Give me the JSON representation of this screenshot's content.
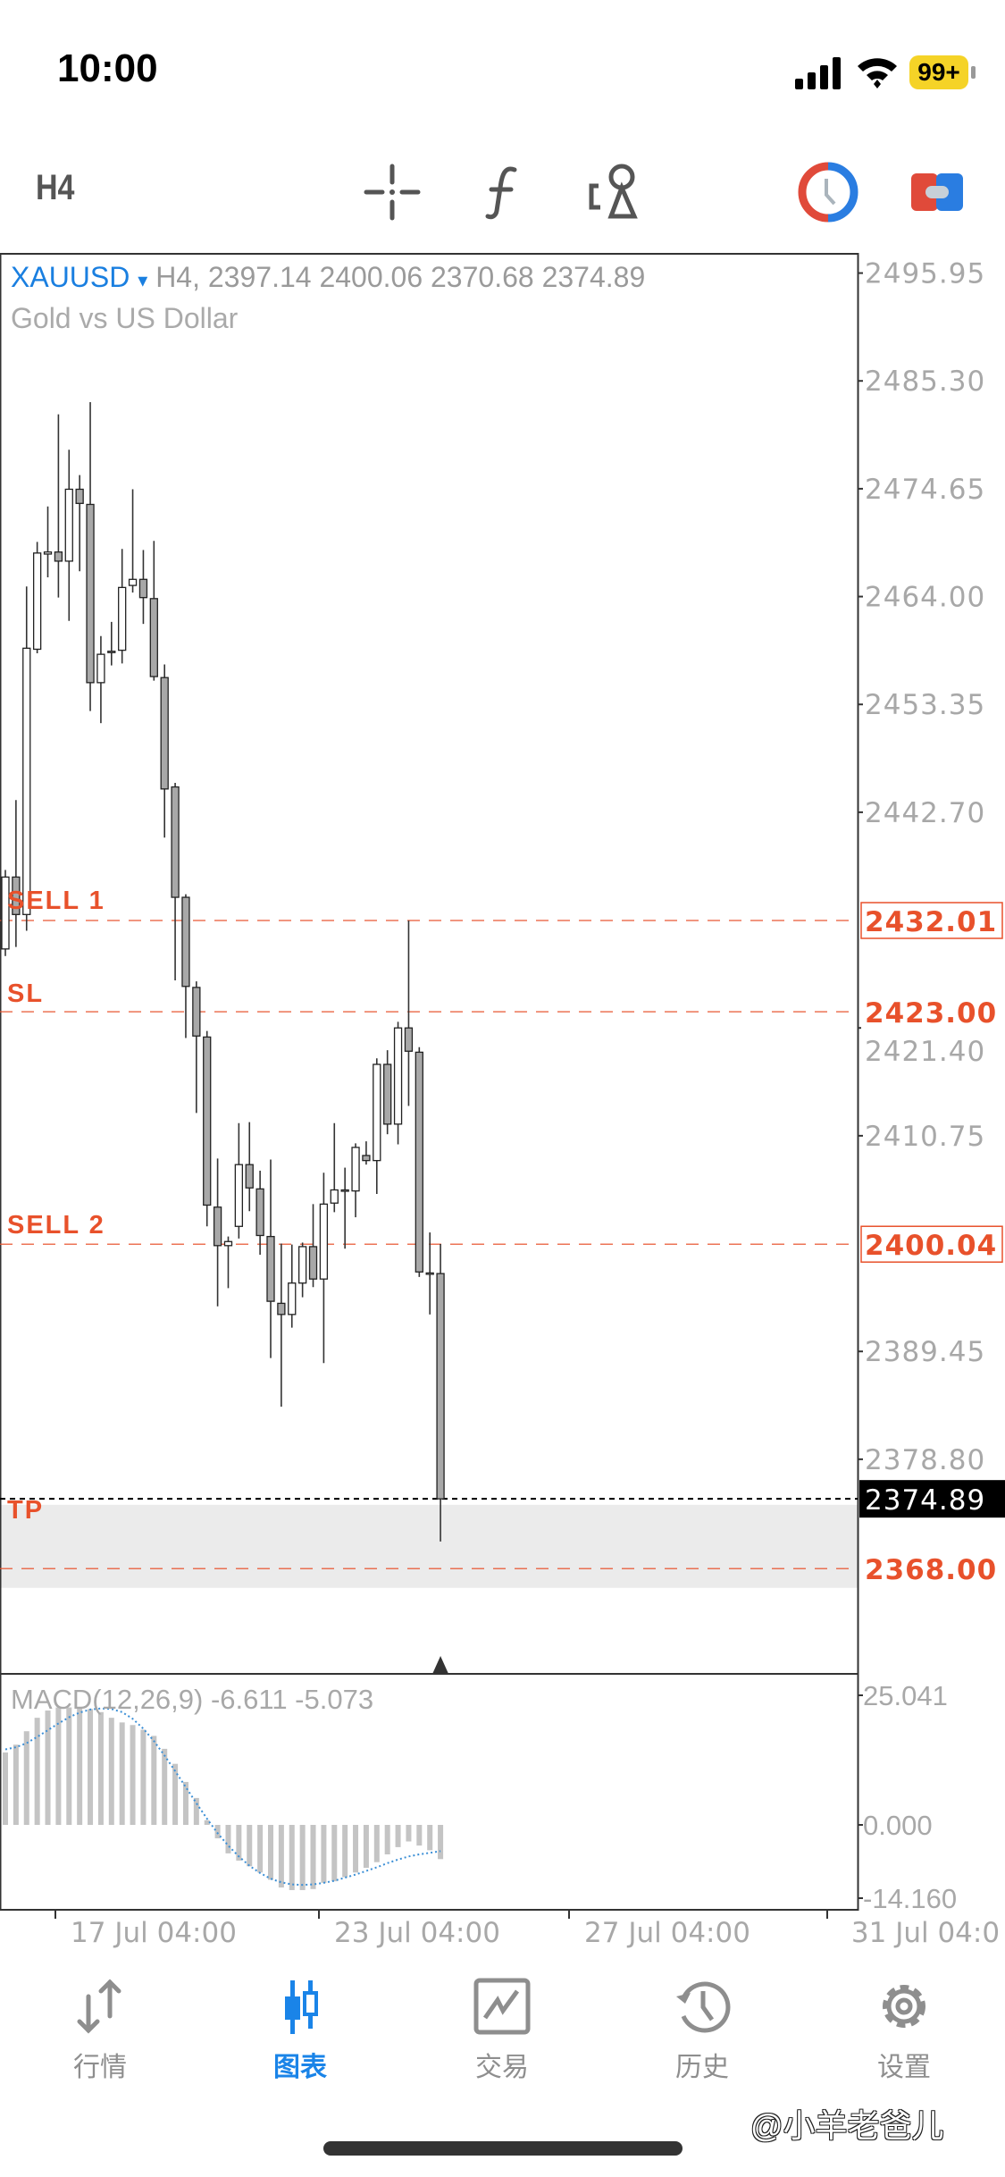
{
  "status_bar": {
    "time": "10:00",
    "battery": "99+",
    "battery_color": "#f5d327"
  },
  "toolbar": {
    "timeframe": "H4",
    "icons": [
      "crosshair-icon",
      "function-icon",
      "objects-icon",
      "trade-clock-icon",
      "one-click-trading-icon"
    ]
  },
  "chart_header": {
    "symbol": "XAUUSD",
    "dropdown_glyph": "▾",
    "ohlc_text": "H4, 2397.14 2400.06 2370.68 2374.89",
    "description": "Gold vs US Dollar"
  },
  "levels": [
    {
      "label": "SELL 1",
      "price": 2432.01,
      "price_label": "2432.01",
      "boxed": true
    },
    {
      "label": "SL",
      "price": 2423.0,
      "price_label": "2423.00",
      "boxed": false
    },
    {
      "label": "SELL 2",
      "price": 2400.04,
      "price_label": "2400.04",
      "boxed": true
    },
    {
      "label": "TP",
      "price": 2368.0,
      "price_label": "2368.00",
      "boxed": false
    }
  ],
  "current_price": {
    "value": 2374.89,
    "label": "2374.89"
  },
  "colors": {
    "accent": "#1a7fe0",
    "level": "#e8512b",
    "candle_bear": "#a8a8a8",
    "candle_bull": "#ffffff",
    "macd_hist": "#c4c4c4",
    "macd_signal": "#3b8fd6",
    "tp_zone": "#ebebeb"
  },
  "chart_data": {
    "type": "candlestick",
    "symbol": "XAUUSD",
    "timeframe": "H4",
    "ohlc_fields": [
      "open",
      "high",
      "low",
      "close"
    ],
    "ohlc": [
      [
        2429.2,
        2437.0,
        2428.5,
        2436.3
      ],
      [
        2436.3,
        2443.9,
        2429.4,
        2432.6
      ],
      [
        2432.6,
        2465.0,
        2431.0,
        2458.9
      ],
      [
        2458.8,
        2469.4,
        2458.4,
        2468.3
      ],
      [
        2468.2,
        2472.9,
        2465.9,
        2468.4
      ],
      [
        2468.4,
        2482.0,
        2463.9,
        2467.5
      ],
      [
        2467.5,
        2478.5,
        2461.6,
        2474.6
      ],
      [
        2474.6,
        2476.0,
        2466.5,
        2473.2
      ],
      [
        2473.1,
        2483.2,
        2452.7,
        2455.5
      ],
      [
        2455.5,
        2460.1,
        2451.5,
        2458.3
      ],
      [
        2458.5,
        2461.5,
        2457.2,
        2458.6
      ],
      [
        2458.7,
        2468.7,
        2457.4,
        2464.9
      ],
      [
        2465.1,
        2474.6,
        2464.4,
        2465.7
      ],
      [
        2465.7,
        2468.6,
        2461.3,
        2463.9
      ],
      [
        2463.8,
        2469.5,
        2455.7,
        2456.1
      ],
      [
        2456.0,
        2457.3,
        2440.2,
        2445.0
      ],
      [
        2445.2,
        2445.6,
        2426.1,
        2434.3
      ],
      [
        2434.3,
        2434.6,
        2420.4,
        2425.5
      ],
      [
        2425.4,
        2426.0,
        2413.0,
        2420.6
      ],
      [
        2420.5,
        2421.1,
        2401.8,
        2403.9
      ],
      [
        2403.7,
        2408.5,
        2393.9,
        2399.9
      ],
      [
        2399.9,
        2400.8,
        2395.7,
        2400.3
      ],
      [
        2401.8,
        2412.0,
        2400.6,
        2407.9
      ],
      [
        2407.9,
        2412.1,
        2403.3,
        2405.6
      ],
      [
        2405.5,
        2407.3,
        2399.0,
        2400.9
      ],
      [
        2400.8,
        2408.4,
        2388.8,
        2394.4
      ],
      [
        2394.2,
        2400.1,
        2384.0,
        2393.1
      ],
      [
        2393.1,
        2400.0,
        2391.8,
        2396.2
      ],
      [
        2396.2,
        2400.2,
        2394.8,
        2399.8
      ],
      [
        2399.8,
        2404.0,
        2395.8,
        2396.6
      ],
      [
        2396.6,
        2407.1,
        2388.3,
        2404.0
      ],
      [
        2404.1,
        2412.0,
        2403.2,
        2405.4
      ],
      [
        2405.4,
        2407.6,
        2399.6,
        2405.4
      ],
      [
        2405.3,
        2410.0,
        2402.7,
        2409.6
      ],
      [
        2408.8,
        2410.2,
        2407.9,
        2408.3
      ],
      [
        2408.3,
        2418.4,
        2405.0,
        2417.8
      ],
      [
        2417.8,
        2419.2,
        2410.9,
        2411.9
      ],
      [
        2411.9,
        2422.0,
        2409.9,
        2421.4
      ],
      [
        2421.4,
        2432.0,
        2413.7,
        2419.1
      ],
      [
        2419.0,
        2419.5,
        2396.8,
        2397.3
      ],
      [
        2397.2,
        2401.2,
        2393.1,
        2397.2
      ],
      [
        2397.14,
        2400.06,
        2370.68,
        2374.89
      ]
    ],
    "price_ticks": [
      "2495.95",
      "2485.30",
      "2474.65",
      "2464.00",
      "2453.35",
      "2442.70",
      "2421.40",
      "2410.75",
      "2389.45",
      "2378.80"
    ],
    "ylim": [
      2362,
      2497
    ],
    "tp_zone": [
      2366.1,
      2374.3
    ],
    "x_ticks": [
      "17 Jul 04:00",
      "23 Jul 04:00",
      "27 Jul 04:00",
      "31 Jul 04:0"
    ],
    "macd": {
      "label": "MACD(12,26,9) -6.611 -5.073",
      "main_value": -6.611,
      "signal_value": -5.073,
      "ticks": [
        "25.041",
        "0.000",
        "-14.160"
      ],
      "histogram": [
        14.0,
        15.5,
        18.1,
        20.7,
        22.1,
        22.7,
        22.7,
        22.7,
        22.4,
        21.8,
        20.7,
        19.8,
        19.3,
        18.4,
        17.2,
        14.7,
        11.8,
        8.3,
        5.2,
        0.9,
        -2.6,
        -5.5,
        -6.9,
        -8.0,
        -9.2,
        -10.6,
        -12.1,
        -12.6,
        -12.6,
        -12.4,
        -11.2,
        -10.9,
        -10.1,
        -9.2,
        -8.3,
        -7.2,
        -5.7,
        -4.3,
        -3.2,
        -4.0,
        -4.9,
        -6.611
      ],
      "signal": [
        14.6,
        15.0,
        15.8,
        17.0,
        18.3,
        19.6,
        20.8,
        21.7,
        22.3,
        22.5,
        22.4,
        21.8,
        20.5,
        18.6,
        16.2,
        13.4,
        10.4,
        7.3,
        4.2,
        1.2,
        -1.6,
        -4.0,
        -6.1,
        -7.9,
        -9.3,
        -10.4,
        -11.1,
        -11.5,
        -11.6,
        -11.5,
        -11.2,
        -10.8,
        -10.2,
        -9.6,
        -8.9,
        -8.2,
        -7.4,
        -6.7,
        -6.1,
        -5.7,
        -5.4,
        -5.073
      ]
    }
  },
  "tabs": [
    {
      "label": "行情",
      "icon": "quotes-arrows-icon",
      "active": false
    },
    {
      "label": "图表",
      "icon": "chart-candles-icon",
      "active": true
    },
    {
      "label": "交易",
      "icon": "trade-chart-icon",
      "active": false
    },
    {
      "label": "历史",
      "icon": "history-clock-icon",
      "active": false
    },
    {
      "label": "设置",
      "icon": "settings-gear-icon",
      "active": false
    }
  ],
  "watermark": "@小羊老爸儿"
}
